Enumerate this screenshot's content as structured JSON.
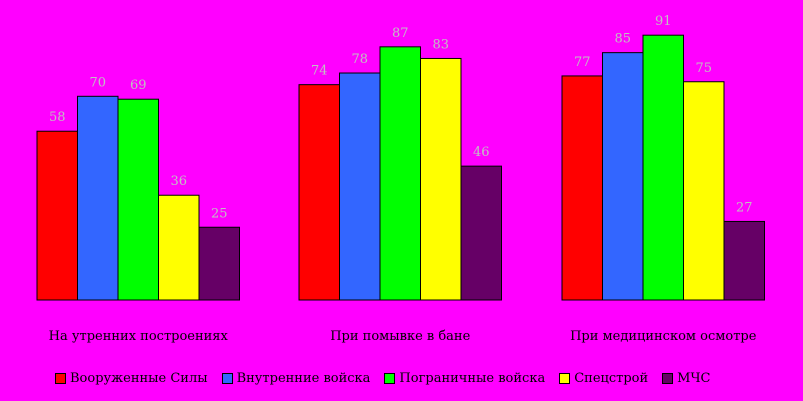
{
  "chart_data": {
    "type": "bar",
    "categories": [
      "На утренних построениях",
      "При помывке в бане",
      "При медицинском осмотре"
    ],
    "series": [
      {
        "name": "Вооруженные Силы",
        "values": [
          58,
          74,
          77
        ],
        "color": "#ff0000"
      },
      {
        "name": "Внутренние войска",
        "values": [
          70,
          78,
          85
        ],
        "color": "#3366ff"
      },
      {
        "name": "Пограничные войска",
        "values": [
          69,
          87,
          91
        ],
        "color": "#00ff00"
      },
      {
        "name": "Спецстрой",
        "values": [
          36,
          83,
          75
        ],
        "color": "#ffff00"
      },
      {
        "name": "МЧС",
        "values": [
          25,
          46,
          27
        ],
        "color": "#660066"
      }
    ],
    "ylim": [
      0,
      100
    ],
    "grid": false,
    "legend_position": "bottom",
    "data_labels": true
  },
  "colors": {
    "background": "#ff00ff",
    "label_text": "#c0c0c0",
    "axis_text": "#000000",
    "bar_outline": "#000000"
  }
}
